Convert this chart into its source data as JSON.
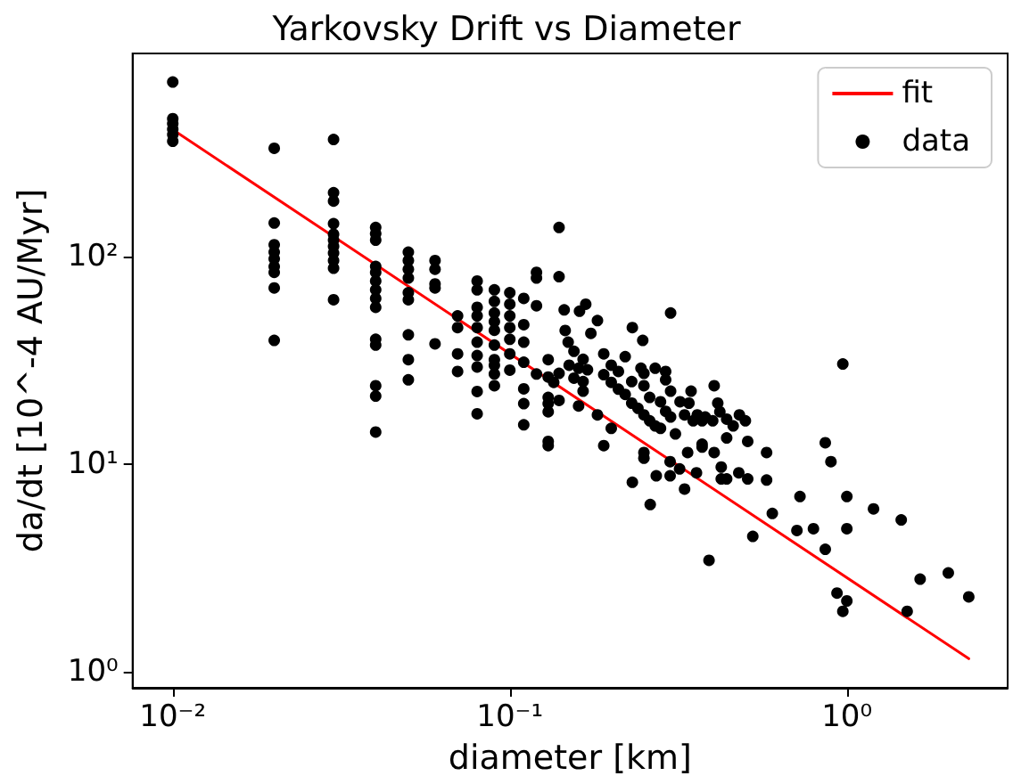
{
  "chart_data": {
    "type": "scatter",
    "title": "Yarkovsky Drift vs Diameter",
    "xlabel": "diameter [km]",
    "ylabel": "da/dt [10^-4 AU/Myr]",
    "log": "xy",
    "grid": false,
    "legend": "top right",
    "marker": "circle",
    "xlim": [
      0.0076,
      3.0
    ],
    "xticks": [
      {
        "value": 0.01,
        "label": "10⁻²"
      },
      {
        "value": 0.1,
        "label": "10⁻¹"
      },
      {
        "value": 1,
        "label": "10⁰"
      }
    ],
    "ylim": [
      0.84,
      950
    ],
    "yticks": [
      {
        "value": 1,
        "label": "10⁰"
      },
      {
        "value": 10,
        "label": "10¹"
      },
      {
        "value": 100,
        "label": "10²"
      }
    ],
    "series": [
      {
        "name": "fit",
        "type": "line",
        "color": "#ff0000",
        "marker": "none",
        "line_style": "solid",
        "x": [
          0.01,
          2.3
        ],
        "values": [
          408,
          1.16
        ]
      },
      {
        "name": "data",
        "color": "#000000",
        "x": [
          0.01,
          0.01,
          0.01,
          0.01,
          0.01,
          0.01,
          0.02,
          0.02,
          0.02,
          0.02,
          0.02,
          0.02,
          0.02,
          0.02,
          0.02,
          0.03,
          0.03,
          0.03,
          0.03,
          0.03,
          0.03,
          0.03,
          0.03,
          0.03,
          0.03,
          0.03,
          0.04,
          0.04,
          0.04,
          0.04,
          0.04,
          0.04,
          0.04,
          0.04,
          0.04,
          0.04,
          0.04,
          0.04,
          0.04,
          0.04,
          0.05,
          0.05,
          0.05,
          0.05,
          0.05,
          0.05,
          0.05,
          0.05,
          0.05,
          0.06,
          0.06,
          0.06,
          0.06,
          0.06,
          0.07,
          0.07,
          0.07,
          0.07,
          0.08,
          0.08,
          0.08,
          0.08,
          0.08,
          0.08,
          0.08,
          0.08,
          0.08,
          0.08,
          0.09,
          0.09,
          0.09,
          0.09,
          0.09,
          0.09,
          0.09,
          0.09,
          0.09,
          0.09,
          0.1,
          0.1,
          0.1,
          0.1,
          0.1,
          0.1,
          0.1,
          0.11,
          0.11,
          0.11,
          0.11,
          0.11,
          0.11,
          0.11,
          0.12,
          0.12,
          0.12,
          0.12,
          0.14,
          0.14,
          0.13,
          0.13,
          0.13,
          0.13,
          0.13,
          0.13,
          0.145,
          0.168,
          0.161,
          0.146,
          0.149,
          0.155,
          0.165,
          0.182,
          0.174,
          0.19,
          0.2,
          0.21,
          0.231,
          0.248,
          0.3,
          0.22,
          0.245,
          0.25,
          0.27,
          0.29,
          0.13,
          0.14,
          0.15,
          0.155,
          0.16,
          0.165,
          0.17,
          0.135,
          0.14,
          0.16,
          0.165,
          0.19,
          0.2,
          0.21,
          0.22,
          0.23,
          0.24,
          0.25,
          0.26,
          0.27,
          0.28,
          0.2,
          0.19,
          0.23,
          0.25,
          0.26,
          0.28,
          0.29,
          0.3,
          0.3,
          0.29,
          0.32,
          0.33,
          0.31,
          0.34,
          0.35,
          0.231,
          0.261,
          0.25,
          0.25,
          0.272,
          0.299,
          0.299,
          0.33,
          0.319,
          0.337,
          0.358,
          0.372,
          0.39,
          0.372,
          0.182,
          0.345,
          0.404,
          0.414,
          0.36,
          0.38,
          0.4,
          0.42,
          0.44,
          0.46,
          0.48,
          0.5,
          0.372,
          0.404,
          0.44,
          0.424,
          0.424,
          0.44,
          0.478,
          0.508,
          0.508,
          0.578,
          0.578,
          0.526,
          0.601,
          0.711,
          0.726,
          0.796,
          0.863,
          0.897,
          0.863,
          0.935,
          1.0,
          0.973,
          1.0,
          1.0,
          0.973,
          1.2,
          1.45,
          1.51,
          1.65,
          2.0,
          2.3
        ],
        "values": [
          692,
          461,
          436,
          410,
          387,
          359,
          332,
          145,
          114,
          105,
          97.5,
          89.5,
          84,
          70.6,
          39.5,
          366,
          203,
          185,
          144,
          128,
          120,
          112,
          104,
          95.7,
          87.9,
          62,
          138,
          129,
          120,
          89.6,
          84,
          76.3,
          69.2,
          62.9,
          57,
          40,
          37.5,
          23.9,
          21.3,
          14.3,
          105,
          95.7,
          86.9,
          78.8,
          67,
          62,
          42,
          31.9,
          25.5,
          95.7,
          86.9,
          73.8,
          70.6,
          38,
          51.8,
          45.5,
          34,
          28,
          76.3,
          69.2,
          57,
          51.8,
          45.5,
          38.7,
          33.4,
          29.4,
          22.4,
          17.5,
          69.2,
          60.8,
          53.5,
          48.6,
          44.2,
          37.5,
          31.9,
          30,
          27.2,
          23.9,
          67,
          59,
          51.8,
          45.5,
          40,
          34,
          28.4,
          62.9,
          47,
          38.7,
          31,
          23.1,
          19.6,
          15.5,
          84,
          78.8,
          58,
          27.2,
          138,
          80,
          26.3,
          21,
          19.6,
          17.9,
          12.9,
          12.3,
          55.4,
          59,
          54.6,
          44.1,
          38.7,
          35,
          32,
          49.2,
          42.7,
          34,
          30,
          28,
          45.5,
          39.5,
          53.5,
          33,
          29,
          27.4,
          29,
          28,
          31.9,
          27.4,
          30,
          26,
          29,
          25,
          28.5,
          24.8,
          20.3,
          19.1,
          22.5,
          27,
          24.8,
          23,
          21.7,
          19.7,
          18.6,
          17.3,
          16.2,
          15.3,
          14.9,
          14.9,
          12.3,
          25,
          23.9,
          21,
          20,
          18,
          16.9,
          22.5,
          25.5,
          20,
          17.3,
          14,
          19.7,
          16.2,
          8.2,
          6.4,
          11.4,
          10.7,
          8.8,
          10.3,
          8.8,
          7.6,
          9.5,
          11.4,
          9.1,
          12.5,
          3.45,
          16.2,
          17.3,
          22.5,
          23.9,
          19.7,
          17.3,
          16.9,
          16.2,
          17.9,
          16.5,
          15.3,
          17.3,
          16.2,
          12.1,
          11.4,
          13.4,
          9.7,
          8.5,
          8.5,
          9.1,
          12.9,
          8.5,
          11.4,
          8.4,
          4.5,
          5.8,
          4.8,
          7.0,
          4.9,
          12.7,
          10.3,
          3.9,
          2.4,
          2.2,
          1.96,
          7.0,
          4.9,
          30.4,
          6.1,
          5.4,
          1.96,
          2.8,
          3.0,
          2.3
        ]
      }
    ]
  }
}
